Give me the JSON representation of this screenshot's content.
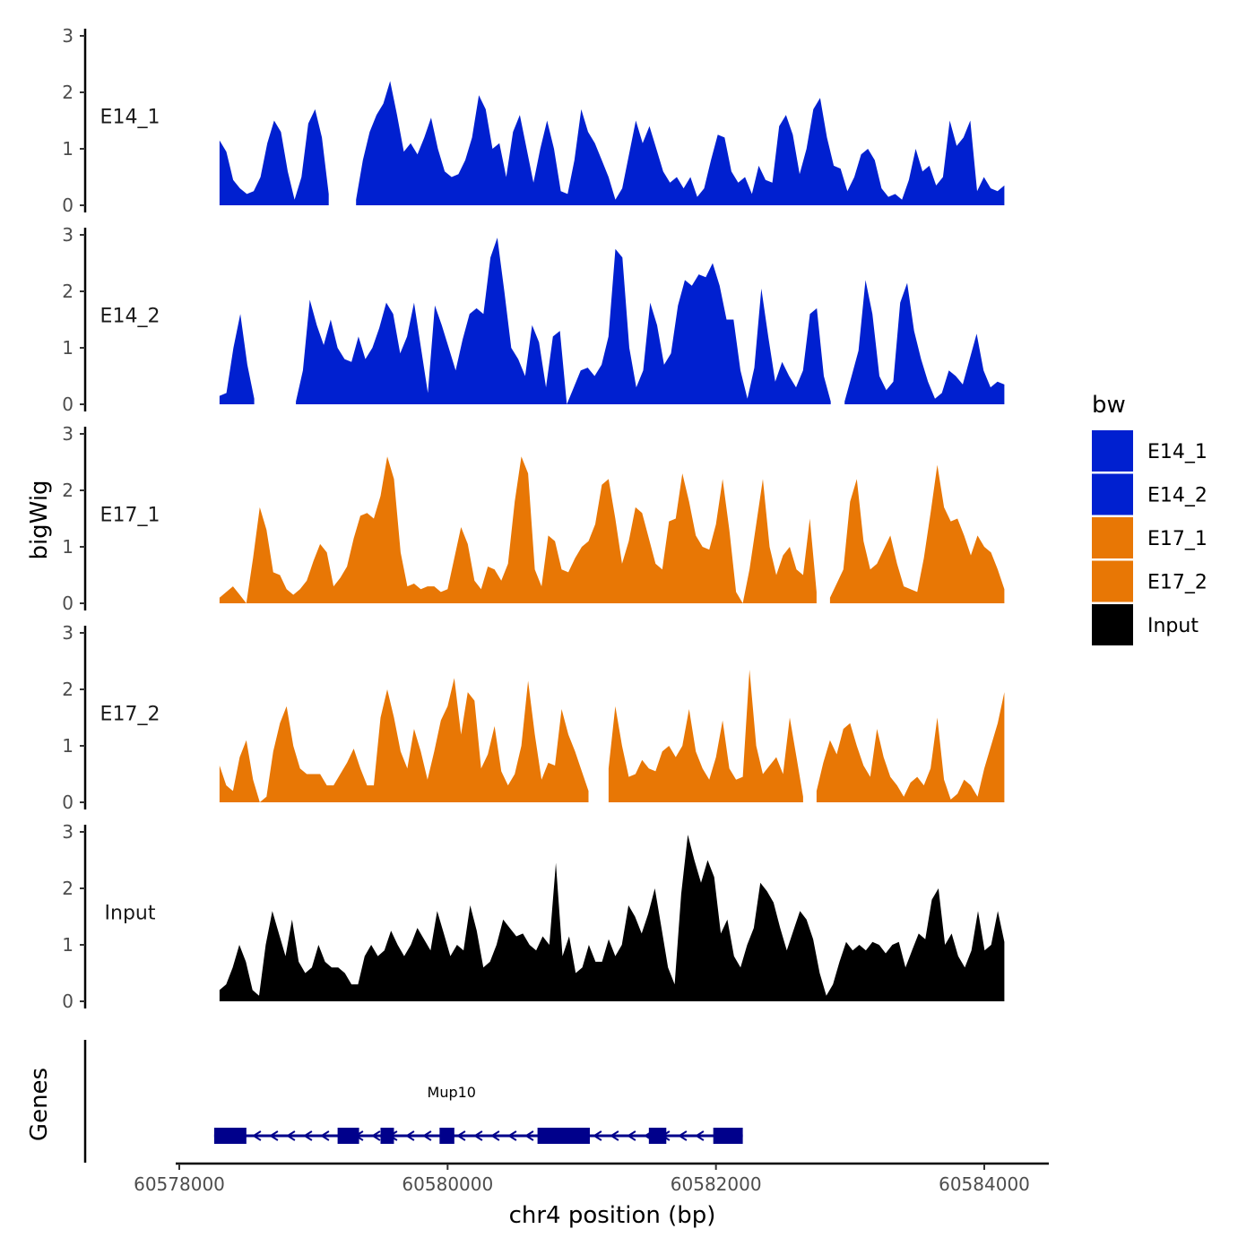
{
  "chart_data": {
    "type": "area",
    "title": "",
    "xlabel": "chr4 position (bp)",
    "ylabel": "bigWig",
    "genes_label": "Genes",
    "xlim": [
      60577850,
      60584500
    ],
    "ylim": [
      0,
      3
    ],
    "x_ticks": [
      60578000,
      60580000,
      60582000,
      60584000
    ],
    "x_tick_labels": [
      "60578000",
      "60580000",
      "60582000",
      "60584000"
    ],
    "y_ticks": [
      0,
      1,
      2,
      3
    ],
    "y_tick_labels": [
      "0",
      "1",
      "2",
      "3"
    ],
    "track_x_range": [
      60578300,
      60584150
    ],
    "legend": {
      "title": "bw",
      "position": "right",
      "entries": [
        {
          "label": "E14_1",
          "color": "#0020d0"
        },
        {
          "label": "E14_2",
          "color": "#0020d0"
        },
        {
          "label": "E17_1",
          "color": "#e87705"
        },
        {
          "label": "E17_2",
          "color": "#e87705"
        },
        {
          "label": "Input",
          "color": "#000000"
        }
      ]
    },
    "series": [
      {
        "name": "E14_1",
        "color": "#0020d0",
        "values": [
          1.15,
          0.95,
          0.45,
          0.3,
          0.2,
          0.25,
          0.5,
          1.1,
          1.5,
          1.3,
          0.6,
          0.1,
          0.5,
          1.45,
          1.7,
          1.2,
          0.2,
          null,
          null,
          null,
          0.1,
          0.8,
          1.3,
          1.6,
          1.8,
          2.2,
          1.6,
          0.95,
          1.1,
          0.9,
          1.2,
          1.55,
          1.0,
          0.6,
          0.5,
          0.55,
          0.8,
          1.2,
          1.95,
          1.7,
          1.0,
          1.1,
          0.5,
          1.3,
          1.6,
          1.0,
          0.4,
          1.0,
          1.5,
          1.0,
          0.25,
          0.2,
          0.8,
          1.7,
          1.3,
          1.1,
          0.8,
          0.5,
          0.1,
          0.3,
          0.9,
          1.5,
          1.1,
          1.4,
          1.0,
          0.6,
          0.4,
          0.5,
          0.3,
          0.5,
          0.15,
          0.3,
          0.8,
          1.25,
          1.2,
          0.6,
          0.4,
          0.5,
          0.2,
          0.7,
          0.45,
          0.4,
          1.4,
          1.6,
          1.25,
          0.55,
          1.0,
          1.7,
          1.9,
          1.2,
          0.7,
          0.65,
          0.25,
          0.5,
          0.9,
          1.0,
          0.8,
          0.3,
          0.15,
          0.2,
          0.1,
          0.45,
          1.0,
          0.6,
          0.7,
          0.35,
          0.5,
          1.5,
          1.05,
          1.2,
          1.5,
          0.25,
          0.5,
          0.3,
          0.25,
          0.35
        ]
      },
      {
        "name": "E14_2",
        "color": "#0020d0",
        "values": [
          0.15,
          0.2,
          1.0,
          1.6,
          0.7,
          0.1,
          null,
          null,
          null,
          null,
          null,
          0.05,
          0.6,
          1.85,
          1.4,
          1.05,
          1.5,
          1.0,
          0.8,
          0.75,
          1.2,
          0.8,
          1.0,
          1.35,
          1.8,
          1.6,
          0.9,
          1.2,
          1.8,
          1.0,
          0.2,
          1.75,
          1.4,
          1.0,
          0.6,
          1.15,
          1.6,
          1.7,
          1.6,
          2.6,
          2.95,
          2.0,
          1.0,
          0.8,
          0.5,
          1.4,
          1.1,
          0.3,
          1.2,
          1.3,
          0.0,
          0.3,
          0.6,
          0.65,
          0.5,
          0.7,
          1.2,
          2.75,
          2.6,
          1.0,
          0.3,
          0.6,
          1.8,
          1.4,
          0.7,
          0.9,
          1.75,
          2.2,
          2.1,
          2.3,
          2.25,
          2.5,
          2.1,
          1.5,
          1.5,
          0.6,
          0.1,
          0.65,
          2.05,
          1.2,
          0.4,
          0.75,
          0.5,
          0.3,
          0.6,
          1.6,
          1.7,
          0.5,
          0.05,
          null,
          0.05,
          0.5,
          0.95,
          2.2,
          1.6,
          0.5,
          0.25,
          0.4,
          1.8,
          2.15,
          1.3,
          0.8,
          0.4,
          0.1,
          0.2,
          0.6,
          0.5,
          0.35,
          0.8,
          1.25,
          0.6,
          0.3,
          0.4,
          0.35
        ]
      },
      {
        "name": "E17_1",
        "color": "#e87705",
        "values": [
          0.1,
          0.2,
          0.3,
          0.15,
          0.0,
          0.8,
          1.7,
          1.3,
          0.55,
          0.5,
          0.25,
          0.15,
          0.25,
          0.4,
          0.75,
          1.05,
          0.9,
          0.3,
          0.45,
          0.65,
          1.15,
          1.55,
          1.6,
          1.5,
          1.9,
          2.6,
          2.2,
          0.9,
          0.3,
          0.35,
          0.25,
          0.3,
          0.3,
          0.2,
          0.25,
          0.8,
          1.35,
          1.05,
          0.4,
          0.25,
          0.65,
          0.6,
          0.4,
          0.7,
          1.8,
          2.6,
          2.3,
          0.6,
          0.3,
          1.2,
          1.1,
          0.6,
          0.55,
          0.8,
          1.0,
          1.1,
          1.4,
          2.1,
          2.2,
          1.5,
          0.7,
          1.1,
          1.7,
          1.6,
          1.15,
          0.7,
          0.6,
          1.45,
          1.5,
          2.3,
          1.8,
          1.2,
          1.0,
          0.95,
          1.4,
          2.2,
          1.3,
          0.2,
          0.0,
          0.6,
          1.4,
          2.2,
          1.0,
          0.5,
          0.85,
          1.0,
          0.6,
          0.5,
          1.5,
          0.2,
          null,
          0.1,
          0.35,
          0.6,
          1.8,
          2.2,
          1.1,
          0.6,
          0.7,
          0.95,
          1.2,
          0.7,
          0.3,
          0.25,
          0.2,
          0.8,
          1.6,
          2.45,
          1.7,
          1.45,
          1.5,
          1.2,
          0.85,
          1.2,
          1.0,
          0.9,
          0.6,
          0.25
        ]
      },
      {
        "name": "E17_2",
        "color": "#e87705",
        "values": [
          0.65,
          0.3,
          0.2,
          0.8,
          1.1,
          0.4,
          0.0,
          0.1,
          0.9,
          1.4,
          1.7,
          1.0,
          0.6,
          0.5,
          0.5,
          0.5,
          0.3,
          0.3,
          0.5,
          0.7,
          0.95,
          0.6,
          0.3,
          0.3,
          1.5,
          2.0,
          1.5,
          0.9,
          0.6,
          1.3,
          0.9,
          0.4,
          0.9,
          1.45,
          1.7,
          2.2,
          1.2,
          1.95,
          1.8,
          0.6,
          0.85,
          1.35,
          0.55,
          0.3,
          0.5,
          1.0,
          2.15,
          1.2,
          0.4,
          0.7,
          0.65,
          1.65,
          1.2,
          0.9,
          0.55,
          0.2,
          null,
          null,
          0.6,
          1.7,
          1.0,
          0.45,
          0.5,
          0.75,
          0.6,
          0.55,
          0.9,
          1.0,
          0.8,
          1.0,
          1.65,
          0.9,
          0.6,
          0.4,
          0.8,
          1.45,
          0.6,
          0.4,
          0.45,
          2.35,
          1.0,
          0.5,
          0.65,
          0.8,
          0.5,
          1.5,
          0.8,
          0.1,
          null,
          0.2,
          0.7,
          1.1,
          0.85,
          1.3,
          1.4,
          1.0,
          0.65,
          0.45,
          1.3,
          0.8,
          0.45,
          0.3,
          0.1,
          0.35,
          0.45,
          0.3,
          0.6,
          1.5,
          0.4,
          0.05,
          0.15,
          0.4,
          0.3,
          0.1,
          0.6,
          1.0,
          1.4,
          1.95
        ]
      },
      {
        "name": "Input",
        "color": "#000000",
        "values": [
          0.2,
          0.3,
          0.6,
          1.0,
          0.7,
          0.2,
          0.1,
          1.0,
          1.6,
          1.2,
          0.8,
          1.45,
          0.7,
          0.5,
          0.6,
          1.0,
          0.7,
          0.6,
          0.6,
          0.5,
          0.3,
          0.3,
          0.8,
          1.0,
          0.8,
          0.9,
          1.25,
          1.0,
          0.8,
          1.0,
          1.3,
          1.1,
          0.9,
          1.6,
          1.2,
          0.8,
          1.0,
          0.9,
          1.7,
          1.25,
          0.6,
          0.7,
          1.0,
          1.45,
          1.3,
          1.15,
          1.2,
          1.0,
          0.9,
          1.15,
          1.0,
          2.45,
          0.8,
          1.15,
          0.5,
          0.6,
          1.0,
          0.7,
          0.7,
          1.1,
          0.8,
          1.0,
          1.7,
          1.5,
          1.2,
          1.55,
          2.0,
          1.3,
          0.6,
          0.3,
          1.9,
          2.95,
          2.5,
          2.1,
          2.5,
          2.2,
          1.2,
          1.45,
          0.8,
          0.6,
          1.0,
          1.3,
          2.1,
          1.95,
          1.75,
          1.3,
          0.9,
          1.25,
          1.6,
          1.45,
          1.1,
          0.5,
          0.1,
          0.3,
          0.7,
          1.05,
          0.9,
          1.0,
          0.9,
          1.05,
          1.0,
          0.85,
          1.0,
          1.05,
          0.6,
          0.9,
          1.2,
          1.1,
          1.8,
          2.0,
          1.0,
          1.2,
          0.8,
          0.6,
          0.9,
          1.6,
          0.9,
          1.0,
          1.6,
          1.05
        ]
      }
    ],
    "genes": [
      {
        "name": "Mup10",
        "strand": "-",
        "color": "#00008b",
        "start": 60578260,
        "end": 60582200,
        "exons": [
          [
            60578260,
            60578500
          ],
          [
            60579180,
            60579340
          ],
          [
            60579500,
            60579600
          ],
          [
            60579940,
            60580050
          ],
          [
            60580670,
            60581060
          ],
          [
            60581500,
            60581630
          ],
          [
            60581980,
            60582200
          ]
        ]
      }
    ]
  }
}
